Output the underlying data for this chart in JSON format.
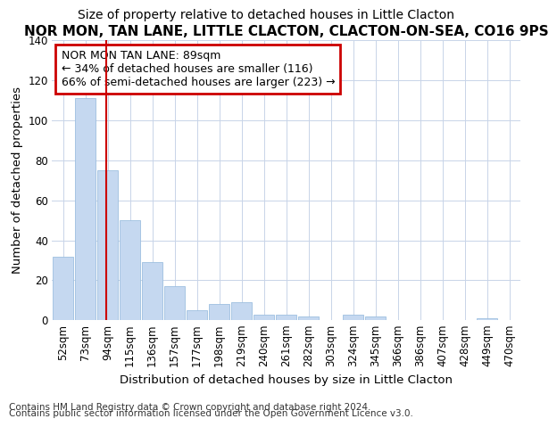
{
  "title": "NOR MON, TAN LANE, LITTLE CLACTON, CLACTON-ON-SEA, CO16 9PS",
  "subtitle": "Size of property relative to detached houses in Little Clacton",
  "xlabel": "Distribution of detached houses by size in Little Clacton",
  "ylabel": "Number of detached properties",
  "footnote1": "Contains HM Land Registry data © Crown copyright and database right 2024.",
  "footnote2": "Contains public sector information licensed under the Open Government Licence v3.0.",
  "bar_labels": [
    "52sqm",
    "73sqm",
    "94sqm",
    "115sqm",
    "136sqm",
    "157sqm",
    "177sqm",
    "198sqm",
    "219sqm",
    "240sqm",
    "261sqm",
    "282sqm",
    "303sqm",
    "324sqm",
    "345sqm",
    "366sqm",
    "386sqm",
    "407sqm",
    "428sqm",
    "449sqm",
    "470sqm"
  ],
  "bar_values": [
    32,
    111,
    75,
    50,
    29,
    17,
    5,
    8,
    9,
    3,
    3,
    2,
    0,
    3,
    2,
    0,
    0,
    0,
    0,
    1,
    0
  ],
  "bar_color": "#c5d8f0",
  "bar_edgecolor": "#9dbfe0",
  "vline_x": 1.92,
  "vline_color": "#cc0000",
  "annotation_text": "NOR MON TAN LANE: 89sqm\n← 34% of detached houses are smaller (116)\n66% of semi-detached houses are larger (223) →",
  "annotation_box_color": "#cc0000",
  "annotation_bg": "#ffffff",
  "ylim": [
    0,
    140
  ],
  "yticks": [
    0,
    20,
    40,
    60,
    80,
    100,
    120,
    140
  ],
  "grid_color": "#c8d4e8",
  "background_color": "#ffffff",
  "plot_bg_color": "#ffffff",
  "title_fontsize": 11,
  "subtitle_fontsize": 10,
  "axis_label_fontsize": 9.5,
  "tick_fontsize": 8.5,
  "annotation_fontsize": 9,
  "footnote_fontsize": 7.5
}
